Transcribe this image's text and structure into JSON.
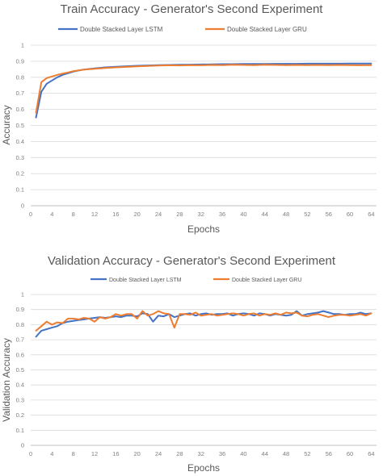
{
  "chart_data": [
    {
      "type": "line",
      "title": "Train Accuracy - Generator's Second Experiment",
      "xlabel": "Epochs",
      "ylabel": "Accuracy",
      "xlim": [
        0,
        65
      ],
      "ylim": [
        0,
        1
      ],
      "xticks": [
        0,
        4,
        8,
        12,
        16,
        20,
        24,
        28,
        32,
        36,
        40,
        44,
        48,
        52,
        56,
        60,
        64
      ],
      "yticks": [
        0,
        0.1,
        0.2,
        0.3,
        0.4,
        0.5,
        0.6,
        0.7,
        0.8,
        0.9,
        1
      ],
      "ytick_labels": [
        "0",
        "0.1",
        "0.2",
        "0.3",
        "0.4",
        "0.5",
        "0.6",
        "0.7",
        "0.8",
        "0.9",
        "1"
      ],
      "grid": "horizontal",
      "legend_position": "top",
      "series": [
        {
          "name": "Double Stacked Layer LSTM",
          "color": "#4472c4",
          "x": [
            1,
            2,
            3,
            4,
            5,
            6,
            7,
            8,
            9,
            10,
            12,
            14,
            16,
            18,
            20,
            22,
            24,
            26,
            28,
            30,
            32,
            34,
            36,
            38,
            40,
            42,
            44,
            46,
            48,
            50,
            52,
            54,
            56,
            58,
            60,
            62,
            64
          ],
          "y": [
            0.55,
            0.71,
            0.76,
            0.78,
            0.8,
            0.815,
            0.825,
            0.835,
            0.842,
            0.848,
            0.856,
            0.862,
            0.866,
            0.869,
            0.872,
            0.874,
            0.876,
            0.877,
            0.878,
            0.879,
            0.88,
            0.881,
            0.882,
            0.882,
            0.883,
            0.883,
            0.883,
            0.884,
            0.884,
            0.884,
            0.885,
            0.885,
            0.885,
            0.885,
            0.886,
            0.886,
            0.886
          ]
        },
        {
          "name": "Double Stacked Layer GRU",
          "color": "#ed7d31",
          "x": [
            1,
            2,
            3,
            4,
            5,
            6,
            7,
            8,
            9,
            10,
            12,
            14,
            16,
            18,
            20,
            22,
            24,
            26,
            28,
            30,
            32,
            34,
            36,
            38,
            40,
            42,
            44,
            46,
            48,
            50,
            52,
            54,
            56,
            58,
            60,
            62,
            64
          ],
          "y": [
            0.58,
            0.77,
            0.795,
            0.805,
            0.815,
            0.823,
            0.83,
            0.838,
            0.843,
            0.848,
            0.853,
            0.858,
            0.862,
            0.865,
            0.868,
            0.871,
            0.873,
            0.875,
            0.874,
            0.876,
            0.875,
            0.877,
            0.876,
            0.878,
            0.877,
            0.876,
            0.878,
            0.877,
            0.876,
            0.877,
            0.876,
            0.877,
            0.876,
            0.877,
            0.876,
            0.875,
            0.876
          ]
        }
      ]
    },
    {
      "type": "line",
      "title": "Validation Accuracy - Generator's Second Experiment",
      "xlabel": "Epochs",
      "ylabel": "Validation Accuracy",
      "xlim": [
        0,
        65
      ],
      "ylim": [
        0,
        1
      ],
      "xticks": [
        0,
        4,
        8,
        12,
        16,
        20,
        24,
        28,
        32,
        36,
        40,
        44,
        48,
        52,
        56,
        60,
        64
      ],
      "yticks": [
        0,
        0.1,
        0.2,
        0.3,
        0.4,
        0.5,
        0.6,
        0.7,
        0.8,
        0.9,
        1
      ],
      "ytick_labels": [
        "0",
        "0.1",
        "0.2",
        "0.3",
        "0.4",
        "0.5",
        "0.6",
        "0.7",
        "0.8",
        "0.9",
        "1"
      ],
      "grid": "horizontal",
      "legend_position": "top",
      "series": [
        {
          "name": "Double Stacked Layer LSTM",
          "color": "#4472c4",
          "x": [
            1,
            2,
            3,
            4,
            5,
            6,
            7,
            8,
            9,
            10,
            11,
            12,
            13,
            14,
            15,
            16,
            17,
            18,
            19,
            20,
            21,
            22,
            23,
            24,
            25,
            26,
            27,
            28,
            29,
            30,
            31,
            32,
            33,
            34,
            35,
            36,
            37,
            38,
            39,
            40,
            41,
            42,
            43,
            44,
            45,
            46,
            47,
            48,
            49,
            50,
            51,
            52,
            53,
            54,
            55,
            56,
            57,
            58,
            59,
            60,
            61,
            62,
            63,
            64
          ],
          "y": [
            0.72,
            0.76,
            0.77,
            0.78,
            0.79,
            0.81,
            0.82,
            0.825,
            0.83,
            0.835,
            0.84,
            0.845,
            0.85,
            0.845,
            0.85,
            0.855,
            0.85,
            0.86,
            0.86,
            0.855,
            0.875,
            0.87,
            0.82,
            0.86,
            0.855,
            0.87,
            0.85,
            0.86,
            0.87,
            0.875,
            0.86,
            0.87,
            0.875,
            0.865,
            0.87,
            0.87,
            0.875,
            0.86,
            0.87,
            0.875,
            0.87,
            0.86,
            0.875,
            0.87,
            0.86,
            0.87,
            0.865,
            0.86,
            0.865,
            0.89,
            0.86,
            0.87,
            0.875,
            0.88,
            0.89,
            0.88,
            0.87,
            0.87,
            0.865,
            0.87,
            0.87,
            0.88,
            0.87,
            0.875
          ]
        },
        {
          "name": "Double Stacked Layer GRU",
          "color": "#ed7d31",
          "x": [
            1,
            2,
            3,
            4,
            5,
            6,
            7,
            8,
            9,
            10,
            11,
            12,
            13,
            14,
            15,
            16,
            17,
            18,
            19,
            20,
            21,
            22,
            23,
            24,
            25,
            26,
            27,
            28,
            29,
            30,
            31,
            32,
            33,
            34,
            35,
            36,
            37,
            38,
            39,
            40,
            41,
            42,
            43,
            44,
            45,
            46,
            47,
            48,
            49,
            50,
            51,
            52,
            53,
            54,
            55,
            56,
            57,
            58,
            59,
            60,
            61,
            62,
            63,
            64
          ],
          "y": [
            0.76,
            0.79,
            0.82,
            0.8,
            0.815,
            0.81,
            0.84,
            0.84,
            0.835,
            0.845,
            0.84,
            0.82,
            0.85,
            0.84,
            0.85,
            0.87,
            0.86,
            0.87,
            0.87,
            0.84,
            0.89,
            0.86,
            0.87,
            0.89,
            0.875,
            0.87,
            0.78,
            0.87,
            0.87,
            0.865,
            0.88,
            0.86,
            0.865,
            0.87,
            0.86,
            0.865,
            0.87,
            0.875,
            0.87,
            0.86,
            0.87,
            0.875,
            0.86,
            0.87,
            0.865,
            0.875,
            0.865,
            0.88,
            0.875,
            0.88,
            0.86,
            0.855,
            0.865,
            0.87,
            0.86,
            0.85,
            0.86,
            0.865,
            0.865,
            0.86,
            0.865,
            0.87,
            0.86,
            0.875
          ]
        }
      ]
    }
  ]
}
